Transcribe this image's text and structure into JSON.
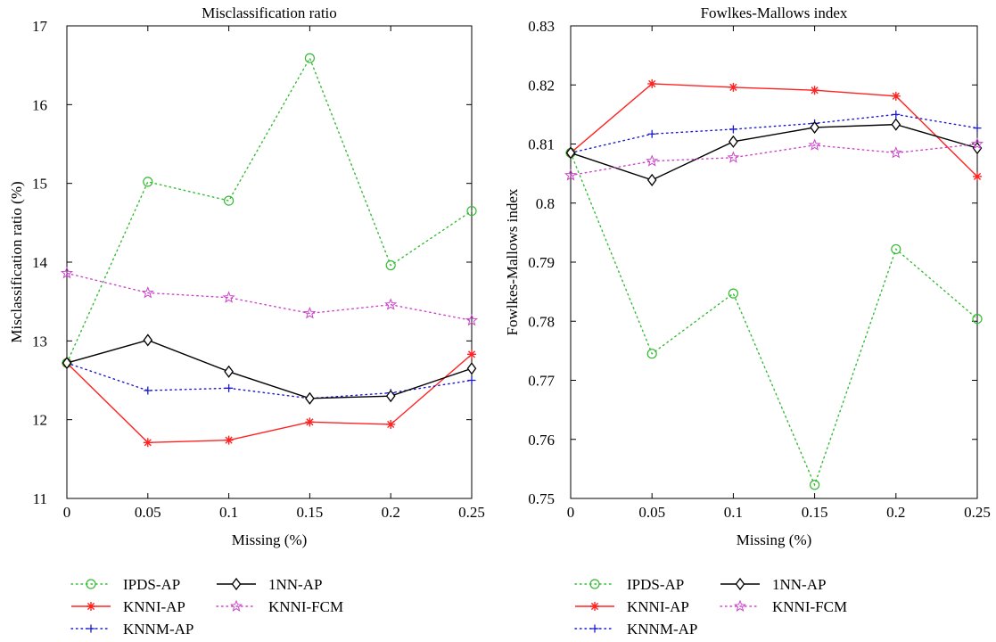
{
  "chart_data": [
    {
      "type": "line",
      "title": "Misclassification ratio",
      "xlabel": "Missing (%)",
      "ylabel": "Misclassification ratio (%)",
      "x": [
        0,
        0.05,
        0.1,
        0.15,
        0.2,
        0.25
      ],
      "x_ticks": [
        "0",
        "0.05",
        "0.1",
        "0.15",
        "0.2",
        "0.25"
      ],
      "xlim": [
        0,
        0.25
      ],
      "ylim": [
        11,
        17
      ],
      "y_ticks": [
        "11",
        "12",
        "13",
        "14",
        "15",
        "16",
        "17"
      ],
      "grid": false,
      "legend_position": "bottom",
      "series": [
        {
          "name": "IPDS-AP",
          "values": [
            12.72,
            15.02,
            14.78,
            16.59,
            13.96,
            14.65
          ]
        },
        {
          "name": "KNNI-AP",
          "values": [
            12.72,
            11.71,
            11.74,
            11.97,
            11.94,
            12.83
          ]
        },
        {
          "name": "KNNM-AP",
          "values": [
            12.72,
            12.37,
            12.4,
            12.27,
            12.34,
            12.5
          ]
        },
        {
          "name": "1NN-AP",
          "values": [
            12.72,
            13.01,
            12.61,
            12.27,
            12.3,
            12.65
          ]
        },
        {
          "name": "KNNI-FCM",
          "values": [
            13.86,
            13.61,
            13.55,
            13.35,
            13.46,
            13.26
          ]
        }
      ]
    },
    {
      "type": "line",
      "title": "Fowlkes-Mallows index",
      "xlabel": "Missing (%)",
      "ylabel": "Fowlkes-Mallows index",
      "x": [
        0,
        0.05,
        0.1,
        0.15,
        0.2,
        0.25
      ],
      "x_ticks": [
        "0",
        "0.05",
        "0.1",
        "0.15",
        "0.2",
        "0.25"
      ],
      "xlim": [
        0,
        0.25
      ],
      "ylim": [
        0.75,
        0.83
      ],
      "y_ticks": [
        "0.75",
        "0.76",
        "0.77",
        "0.78",
        "0.79",
        "0.8",
        "0.81",
        "0.82",
        "0.83"
      ],
      "grid": false,
      "legend_position": "bottom",
      "series": [
        {
          "name": "IPDS-AP",
          "values": [
            0.8085,
            0.7745,
            0.7847,
            0.7523,
            0.7922,
            0.7804
          ]
        },
        {
          "name": "KNNI-AP",
          "values": [
            0.8085,
            0.8202,
            0.8196,
            0.8191,
            0.8181,
            0.8045
          ]
        },
        {
          "name": "KNNM-AP",
          "values": [
            0.8085,
            0.8117,
            0.8125,
            0.8135,
            0.815,
            0.8127
          ]
        },
        {
          "name": "1NN-AP",
          "values": [
            0.8085,
            0.8039,
            0.8104,
            0.8128,
            0.8133,
            0.8093
          ]
        },
        {
          "name": "KNNI-FCM",
          "values": [
            0.8047,
            0.8071,
            0.8077,
            0.8098,
            0.8085,
            0.81
          ]
        }
      ]
    }
  ],
  "series_styles": [
    {
      "color": "#33bb33",
      "dash": "1.5,4",
      "marker": "circle"
    },
    {
      "color": "#ff2222",
      "dash": "",
      "marker": "asterisk"
    },
    {
      "color": "#1a1acc",
      "dash": "1.5,4",
      "marker": "plus"
    },
    {
      "color": "#000000",
      "dash": "",
      "marker": "diamond"
    },
    {
      "color": "#cc44cc",
      "dash": "1.5,4",
      "marker": "star"
    }
  ]
}
